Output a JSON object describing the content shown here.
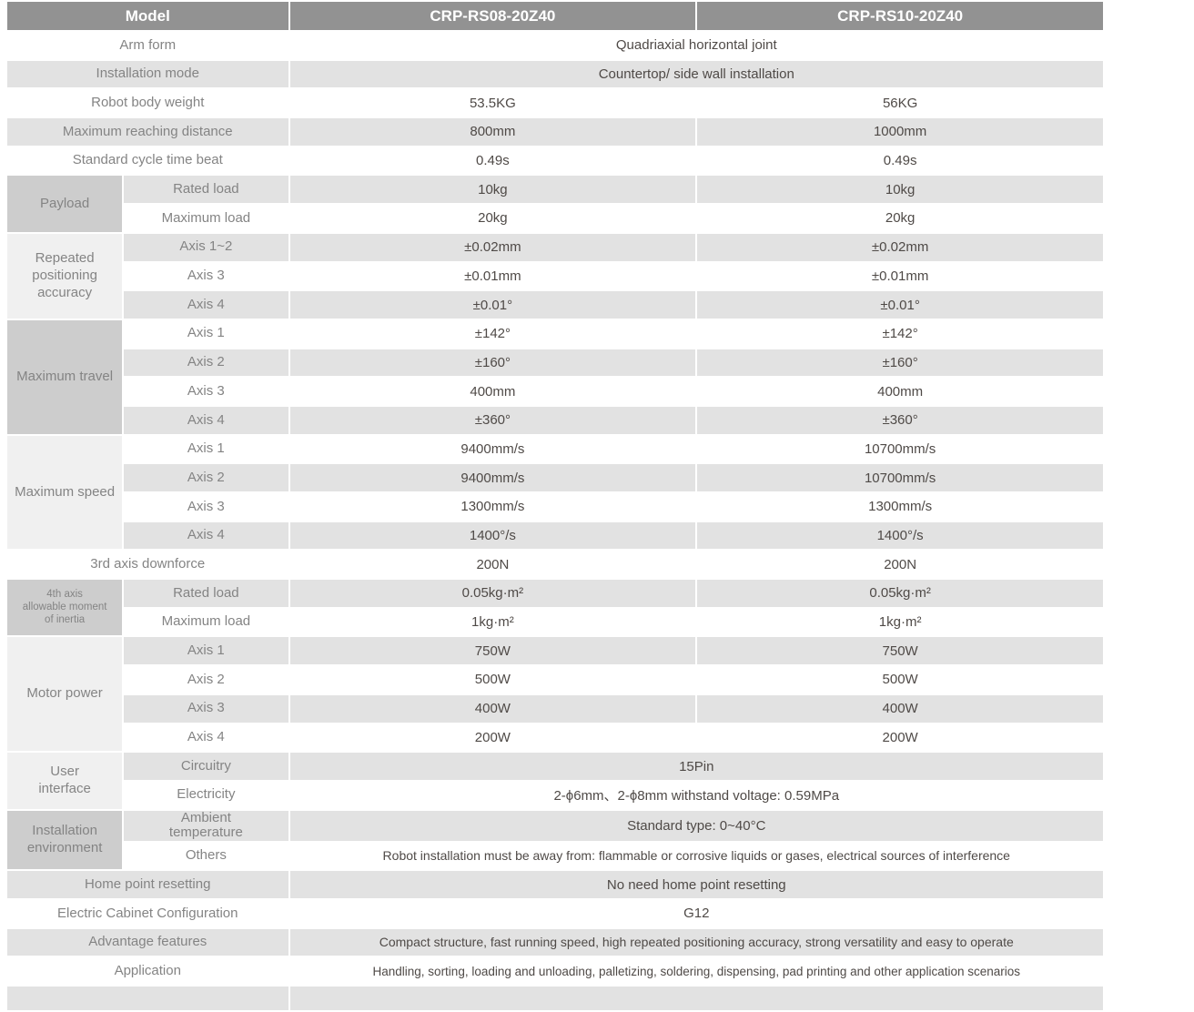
{
  "header": {
    "model": "Model",
    "model1": "CRP-RS08-20Z40",
    "model2": "CRP-RS10-20Z40"
  },
  "rows": [
    {
      "label": "Arm form",
      "full": true,
      "values": [
        "Quadriaxial horizontal joint"
      ]
    },
    {
      "label": "Installation mode",
      "full": true,
      "values": [
        "Countertop/ side wall installation"
      ]
    },
    {
      "label": "Robot body weight",
      "full": true,
      "values": [
        "53.5KG",
        "56KG"
      ]
    },
    {
      "label": "Maximum reaching distance",
      "full": true,
      "values": [
        "800mm",
        "1000mm"
      ]
    },
    {
      "label": "Standard cycle time beat",
      "full": true,
      "values": [
        "0.49s",
        "0.49s"
      ]
    },
    {
      "label": "Rated load",
      "group": {
        "label": "Payload",
        "rows": 2,
        "shade": "dark"
      },
      "values": [
        "10kg",
        "10kg"
      ]
    },
    {
      "label": "Maximum load",
      "values": [
        "20kg",
        "20kg"
      ]
    },
    {
      "label": "Axis 1~2",
      "group": {
        "label": "Repeated positioning accuracy",
        "rows": 3,
        "shade": "light"
      },
      "values": [
        "±0.02mm",
        "±0.02mm"
      ]
    },
    {
      "label": "Axis 3",
      "values": [
        "±0.01mm",
        "±0.01mm"
      ]
    },
    {
      "label": "Axis 4",
      "values": [
        "±0.01°",
        "±0.01°"
      ]
    },
    {
      "label": "Axis 1",
      "group": {
        "label": "Maximum travel",
        "rows": 4,
        "shade": "dark"
      },
      "values": [
        "±142°",
        "±142°"
      ]
    },
    {
      "label": "Axis 2",
      "values": [
        "±160°",
        "±160°"
      ]
    },
    {
      "label": "Axis 3",
      "values": [
        "400mm",
        "400mm"
      ]
    },
    {
      "label": "Axis 4",
      "values": [
        "±360°",
        "±360°"
      ]
    },
    {
      "label": "Axis 1",
      "group": {
        "label": "Maximum speed",
        "rows": 4,
        "shade": "light"
      },
      "values": [
        "9400mm/s",
        "10700mm/s"
      ]
    },
    {
      "label": "Axis 2",
      "values": [
        "9400mm/s",
        "10700mm/s"
      ]
    },
    {
      "label": "Axis 3",
      "values": [
        "1300mm/s",
        "1300mm/s"
      ]
    },
    {
      "label": "Axis 4",
      "values": [
        "1400°/s",
        "1400°/s"
      ]
    },
    {
      "label": "3rd axis downforce",
      "full": true,
      "values": [
        "200N",
        "200N"
      ]
    },
    {
      "label": "Rated load",
      "group": {
        "label": "4th axis\nallowable moment\nof inertia",
        "rows": 2,
        "shade": "dark",
        "small": true
      },
      "values": [
        "0.05kg·m²",
        "0.05kg·m²"
      ]
    },
    {
      "label": "Maximum load",
      "values": [
        "1kg·m²",
        "1kg·m²"
      ]
    },
    {
      "label": "Axis 1",
      "group": {
        "label": "Motor power",
        "rows": 4,
        "shade": "light"
      },
      "values": [
        "750W",
        "750W"
      ]
    },
    {
      "label": "Axis 2",
      "values": [
        "500W",
        "500W"
      ]
    },
    {
      "label": "Axis 3",
      "values": [
        "400W",
        "400W"
      ]
    },
    {
      "label": "Axis 4",
      "values": [
        "200W",
        "200W"
      ]
    },
    {
      "label": "Circuitry",
      "group": {
        "label": "User\ninterface",
        "rows": 2,
        "shade": "light"
      },
      "values": [
        "15Pin"
      ]
    },
    {
      "label": "Electricity",
      "values": [
        "2-ϕ6mm、2-ϕ8mm withstand voltage: 0.59MPa"
      ]
    },
    {
      "label": "Ambient\ntemperature",
      "group": {
        "label": "Installation\nenvironment",
        "rows": 2,
        "shade": "dark"
      },
      "values": [
        "Standard type:  0~40°C"
      ]
    },
    {
      "label": "Others",
      "size": "long",
      "values": [
        "Robot installation must be away from: flammable or corrosive liquids or gases, electrical sources of interference"
      ]
    },
    {
      "label": "Home point resetting",
      "full": true,
      "values": [
        "No need home point resetting"
      ]
    },
    {
      "label": "Electric Cabinet Configuration",
      "full": true,
      "values": [
        "G12"
      ]
    },
    {
      "label": "Advantage features",
      "full": true,
      "size": "long",
      "values": [
        "Compact structure, fast running speed, high repeated positioning accuracy, strong versatility and easy to operate"
      ]
    },
    {
      "label": "Application",
      "full": true,
      "size": "longer",
      "values": [
        "Handling, sorting, loading and unloading, palletizing, soldering, dispensing, pad printing and other application scenarios"
      ]
    }
  ],
  "colors": {
    "header_bg": "#929292",
    "header_text": "#ffffff",
    "row_gray": "#e2e2e2",
    "row_white": "#ffffff",
    "group_cell_dark": "#cdcdcd",
    "group_cell_light": "#f0f0f0",
    "label_text": "#848484",
    "value_text": "#4f4a47"
  }
}
